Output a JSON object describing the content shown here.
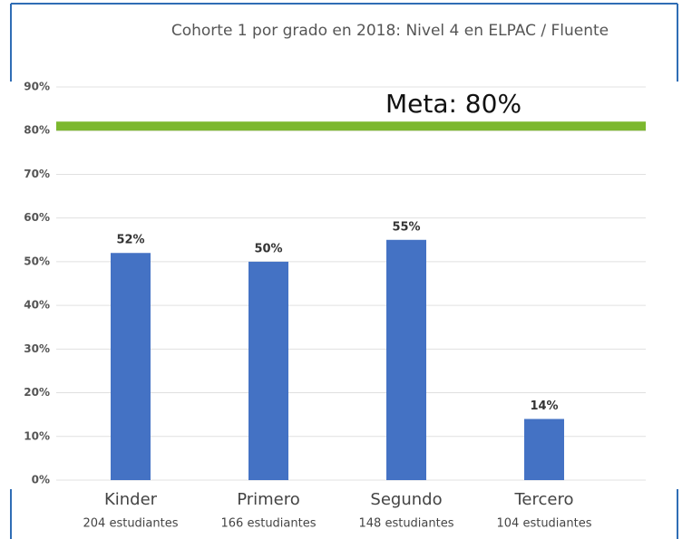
{
  "chart_data": {
    "type": "bar",
    "title": "Cohorte 1 por grado en 2018: Nivel 4 en ELPAC / Fluente",
    "categories": [
      "Kinder",
      "Primero",
      "Segundo",
      "Tercero"
    ],
    "category_notes": [
      "204 estudiantes",
      "166 estudiantes",
      "148 estudiantes",
      "104 estudiantes"
    ],
    "values": [
      52,
      50,
      55,
      14
    ],
    "value_labels": [
      "52%",
      "50%",
      "55%",
      "14%"
    ],
    "color": "#4472c4",
    "target": {
      "value": 80,
      "label": "Meta: 80%",
      "color": "#7cb82f"
    },
    "ylim": [
      0,
      90
    ],
    "yticks": [
      {
        "value": 0,
        "label": "0%"
      },
      {
        "value": 10,
        "label": "10%"
      },
      {
        "value": 20,
        "label": "20%"
      },
      {
        "value": 30,
        "label": "30%"
      },
      {
        "value": 40,
        "label": "40%"
      },
      {
        "value": 50,
        "label": "50%"
      },
      {
        "value": 60,
        "label": "60%"
      },
      {
        "value": 70,
        "label": "70%"
      },
      {
        "value": 80,
        "label": "80%"
      },
      {
        "value": 90,
        "label": "90%"
      }
    ],
    "grid": true
  }
}
